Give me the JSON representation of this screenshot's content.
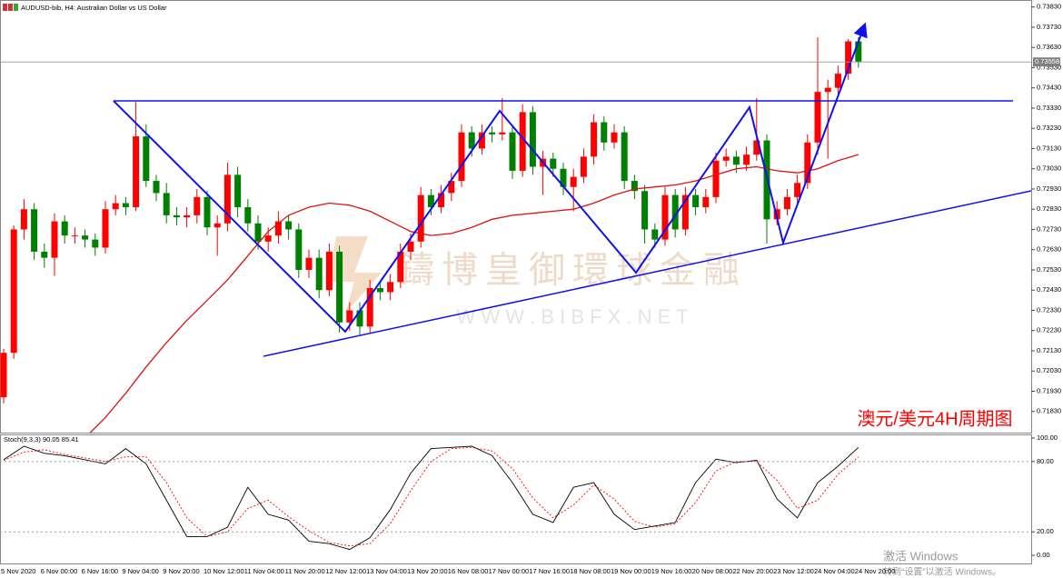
{
  "chart_data": [
    {
      "type": "candlestick",
      "title": "AUDUSD-bib, H4: Australian Dollar vs US Dollar",
      "categories": [
        "5 Nov 2020",
        null,
        null,
        null,
        "6 Nov 00:00",
        null,
        null,
        null,
        "6 Nov 16:00",
        null,
        null,
        null,
        "9 Nov 04:00",
        null,
        null,
        null,
        "9 Nov 20:00",
        null,
        null,
        null,
        "10 Nov 12:00",
        null,
        null,
        null,
        "11 Nov 04:00",
        null,
        null,
        null,
        "11 Nov 20:00",
        null,
        null,
        null,
        "12 Nov 12:00",
        null,
        null,
        null,
        "13 Nov 04:00",
        null,
        null,
        null,
        "13 Nov 20:00",
        null,
        null,
        null,
        "16 Nov 08:00",
        null,
        null,
        null,
        "17 Nov 00:00",
        null,
        null,
        null,
        "17 Nov 16:00",
        null,
        null,
        null,
        "18 Nov 08:00",
        null,
        null,
        null,
        "19 Nov 00:00",
        null,
        null,
        null,
        "19 Nov 16:00",
        null,
        null,
        null,
        "20 Nov 08:00",
        null,
        null,
        null,
        "22 Nov 20:00",
        null,
        null,
        null,
        "23 Nov 12:00",
        null,
        null,
        null,
        "24 Nov 04:00",
        null,
        null,
        null,
        "24 Nov 20:00"
      ],
      "candles": [
        [
          0.719,
          0.7214,
          0.7187,
          0.7212
        ],
        [
          0.7212,
          0.7275,
          0.7209,
          0.7273
        ],
        [
          0.7273,
          0.7288,
          0.7268,
          0.7283
        ],
        [
          0.7283,
          0.7286,
          0.7258,
          0.7262
        ],
        [
          0.7262,
          0.7266,
          0.7254,
          0.7259
        ],
        [
          0.7259,
          0.7281,
          0.725,
          0.7277
        ],
        [
          0.7277,
          0.728,
          0.7266,
          0.727
        ],
        [
          0.727,
          0.7274,
          0.7266,
          0.727
        ],
        [
          0.727,
          0.7273,
          0.7264,
          0.7268
        ],
        [
          0.7268,
          0.7271,
          0.726,
          0.7264
        ],
        [
          0.7264,
          0.7287,
          0.7261,
          0.7283
        ],
        [
          0.7283,
          0.729,
          0.728,
          0.7286
        ],
        [
          0.7286,
          0.7289,
          0.728,
          0.7284
        ],
        [
          0.7284,
          0.7336,
          0.7282,
          0.7319
        ],
        [
          0.7319,
          0.7325,
          0.7294,
          0.7297
        ],
        [
          0.7297,
          0.73,
          0.7287,
          0.7291
        ],
        [
          0.7291,
          0.7296,
          0.7276,
          0.728
        ],
        [
          0.728,
          0.7284,
          0.7275,
          0.7279
        ],
        [
          0.7279,
          0.7284,
          0.7274,
          0.728
        ],
        [
          0.728,
          0.7293,
          0.7276,
          0.7289
        ],
        [
          0.7289,
          0.7292,
          0.727,
          0.7274
        ],
        [
          0.7274,
          0.728,
          0.726,
          0.7276
        ],
        [
          0.7276,
          0.7306,
          0.7272,
          0.73
        ],
        [
          0.73,
          0.7304,
          0.7279,
          0.7284
        ],
        [
          0.7284,
          0.7288,
          0.7272,
          0.7276
        ],
        [
          0.7276,
          0.728,
          0.7263,
          0.7267
        ],
        [
          0.7267,
          0.7274,
          0.7262,
          0.727
        ],
        [
          0.727,
          0.7282,
          0.7266,
          0.7277
        ],
        [
          0.7277,
          0.728,
          0.7268,
          0.7273
        ],
        [
          0.7273,
          0.7276,
          0.7249,
          0.7253
        ],
        [
          0.7253,
          0.7263,
          0.7249,
          0.7259
        ],
        [
          0.7259,
          0.7263,
          0.7239,
          0.7243
        ],
        [
          0.7243,
          0.7266,
          0.724,
          0.7262
        ],
        [
          0.7262,
          0.7265,
          0.7222,
          0.7227
        ],
        [
          0.7227,
          0.7237,
          0.7223,
          0.7233
        ],
        [
          0.7233,
          0.7237,
          0.7221,
          0.7225
        ],
        [
          0.7225,
          0.7248,
          0.7222,
          0.7244
        ],
        [
          0.7244,
          0.7247,
          0.7238,
          0.7242
        ],
        [
          0.7242,
          0.7251,
          0.7238,
          0.7247
        ],
        [
          0.7247,
          0.7266,
          0.7244,
          0.7262
        ],
        [
          0.7262,
          0.7271,
          0.7258,
          0.7267
        ],
        [
          0.7267,
          0.7294,
          0.7264,
          0.729
        ],
        [
          0.729,
          0.7293,
          0.728,
          0.7284
        ],
        [
          0.7284,
          0.7295,
          0.7281,
          0.7291
        ],
        [
          0.7291,
          0.7301,
          0.7287,
          0.7297
        ],
        [
          0.7297,
          0.7325,
          0.7294,
          0.7321
        ],
        [
          0.7321,
          0.7324,
          0.7309,
          0.7313
        ],
        [
          0.7313,
          0.7325,
          0.731,
          0.7321
        ],
        [
          0.7321,
          0.7324,
          0.7316,
          0.732
        ],
        [
          0.732,
          0.7338,
          0.7317,
          0.7321
        ],
        [
          0.7321,
          0.7324,
          0.7298,
          0.7302
        ],
        [
          0.7302,
          0.7335,
          0.7299,
          0.7331
        ],
        [
          0.7331,
          0.7334,
          0.73,
          0.7304
        ],
        [
          0.7304,
          0.7312,
          0.729,
          0.7308
        ],
        [
          0.7308,
          0.7311,
          0.7299,
          0.7303
        ],
        [
          0.7303,
          0.7306,
          0.729,
          0.7294
        ],
        [
          0.7294,
          0.7303,
          0.7282,
          0.7299
        ],
        [
          0.7299,
          0.7313,
          0.7296,
          0.7309
        ],
        [
          0.7309,
          0.733,
          0.7305,
          0.7326
        ],
        [
          0.7326,
          0.7329,
          0.7312,
          0.7316
        ],
        [
          0.7316,
          0.7325,
          0.7313,
          0.7321
        ],
        [
          0.7321,
          0.7324,
          0.7293,
          0.7297
        ],
        [
          0.7297,
          0.73,
          0.7288,
          0.7292
        ],
        [
          0.7292,
          0.7295,
          0.7266,
          0.7273
        ],
        [
          0.7273,
          0.7276,
          0.7264,
          0.7268
        ],
        [
          0.7268,
          0.7294,
          0.7265,
          0.729
        ],
        [
          0.729,
          0.7293,
          0.7269,
          0.7273
        ],
        [
          0.7273,
          0.7294,
          0.727,
          0.729
        ],
        [
          0.729,
          0.7293,
          0.728,
          0.7284
        ],
        [
          0.7284,
          0.7293,
          0.7281,
          0.7289
        ],
        [
          0.7289,
          0.7311,
          0.7286,
          0.7307
        ],
        [
          0.7307,
          0.7313,
          0.7304,
          0.7309
        ],
        [
          0.7309,
          0.7312,
          0.7301,
          0.7305
        ],
        [
          0.7305,
          0.7314,
          0.7302,
          0.731
        ],
        [
          0.731,
          0.7338,
          0.7307,
          0.7317
        ],
        [
          0.7317,
          0.732,
          0.7266,
          0.7278
        ],
        [
          0.7278,
          0.7287,
          0.7275,
          0.7283
        ],
        [
          0.7283,
          0.7293,
          0.728,
          0.7289
        ],
        [
          0.7289,
          0.73,
          0.7286,
          0.7296
        ],
        [
          0.7296,
          0.732,
          0.7293,
          0.7316
        ],
        [
          0.7316,
          0.7368,
          0.731,
          0.7341
        ],
        [
          0.7341,
          0.7347,
          0.7308,
          0.7343
        ],
        [
          0.7343,
          0.7354,
          0.7339,
          0.735
        ],
        [
          0.735,
          0.7367,
          0.7347,
          0.7366
        ],
        [
          0.7366,
          0.7368,
          0.7353,
          0.7356
        ]
      ],
      "up_color": "#ff0000",
      "down_color": "#008000",
      "overlay": {
        "color": "#e01010",
        "x": [
          8,
          10,
          12,
          14,
          16,
          18,
          20,
          22,
          24,
          26,
          28,
          30,
          32,
          34,
          36,
          38,
          40,
          42,
          44,
          46,
          48,
          50,
          52,
          54,
          56,
          58,
          60,
          62,
          64,
          66,
          68,
          70,
          72,
          74,
          76,
          78,
          80,
          82,
          84
        ],
        "values": [
          0.717,
          0.718,
          0.7192,
          0.7205,
          0.7217,
          0.7228,
          0.7238,
          0.7248,
          0.726,
          0.7272,
          0.728,
          0.7284,
          0.7286,
          0.7285,
          0.7282,
          0.7277,
          0.7272,
          0.727,
          0.7271,
          0.7274,
          0.7278,
          0.728,
          0.7281,
          0.7282,
          0.7283,
          0.7286,
          0.729,
          0.7293,
          0.7294,
          0.7295,
          0.7297,
          0.73,
          0.7303,
          0.7304,
          0.7302,
          0.7301,
          0.7303,
          0.7307,
          0.731
        ]
      },
      "last_price": 0.73558,
      "ylim": [
        0.7173,
        0.7386
      ],
      "yticks": [
        {
          "value": 0.7383,
          "label": "0.73830"
        },
        {
          "value": 0.7373,
          "label": "0.73730"
        },
        {
          "value": 0.7363,
          "label": "0.73630"
        },
        {
          "value": 0.7353,
          "label": "0.73530"
        },
        {
          "value": 0.7343,
          "label": "0.73430"
        },
        {
          "value": 0.7333,
          "label": "0.73330"
        },
        {
          "value": 0.7323,
          "label": "0.73230"
        },
        {
          "value": 0.7313,
          "label": "0.73130"
        },
        {
          "value": 0.7303,
          "label": "0.73030"
        },
        {
          "value": 0.7293,
          "label": "0.72930"
        },
        {
          "value": 0.7283,
          "label": "0.72830"
        },
        {
          "value": 0.7273,
          "label": "0.72730"
        },
        {
          "value": 0.7263,
          "label": "0.72630"
        },
        {
          "value": 0.7253,
          "label": "0.72530"
        },
        {
          "value": 0.7243,
          "label": "0.72430"
        },
        {
          "value": 0.7233,
          "label": "0.72330"
        },
        {
          "value": 0.7223,
          "label": "0.72230"
        },
        {
          "value": 0.7213,
          "label": "0.72130"
        },
        {
          "value": 0.7203,
          "label": "0.72030"
        },
        {
          "value": 0.7193,
          "label": "0.71930"
        },
        {
          "value": 0.7183,
          "label": "0.71830"
        }
      ]
    },
    {
      "type": "line",
      "title": "Stoch(9,3,3) 90.05 85.41",
      "x": [
        0,
        2,
        4,
        6,
        8,
        10,
        12,
        14,
        16,
        18,
        20,
        22,
        24,
        26,
        28,
        30,
        32,
        34,
        36,
        38,
        40,
        42,
        44,
        46,
        48,
        50,
        52,
        54,
        56,
        58,
        60,
        62,
        64,
        66,
        68,
        70,
        72,
        74,
        76,
        78,
        80,
        82,
        84
      ],
      "series": [
        {
          "color": "#000000",
          "values": [
            81.5,
            93,
            87,
            85,
            81.5,
            78,
            91,
            78,
            47,
            16,
            16,
            24,
            58,
            35,
            30,
            12,
            10,
            5,
            15,
            39,
            70,
            91,
            92,
            93,
            85,
            62,
            35,
            28,
            58,
            62,
            35,
            22,
            25,
            28,
            62,
            82,
            79,
            81,
            48,
            32,
            62,
            76,
            92
          ]
        },
        {
          "color": "#ff0000",
          "dashed": true,
          "values": [
            81,
            88,
            90,
            86,
            83,
            80,
            84,
            84,
            62,
            32,
            16,
            20,
            40,
            47,
            33,
            21,
            11,
            8,
            10,
            27,
            55,
            80,
            91,
            92,
            89,
            74,
            49,
            32,
            43,
            60,
            48,
            29,
            24,
            27,
            45,
            72,
            80,
            80,
            64,
            40,
            47,
            69,
            84
          ]
        }
      ],
      "ylim": [
        -7.7,
        103.1
      ],
      "yticks": [
        {
          "value": 100,
          "label": "100.00"
        },
        {
          "value": 80,
          "label": "80.00"
        },
        {
          "value": 20,
          "label": "20.00"
        },
        {
          "value": 0,
          "label": "0.00"
        }
      ]
    }
  ],
  "annotation": "澳元/美元4H周期图",
  "watermark": {
    "brand": "鑄博皇御環球金融",
    "url": "W W W . B I B F X . N E T"
  },
  "os_notice": {
    "title": "激活 Windows",
    "text": "转到“设置”以激活 Windows。"
  }
}
